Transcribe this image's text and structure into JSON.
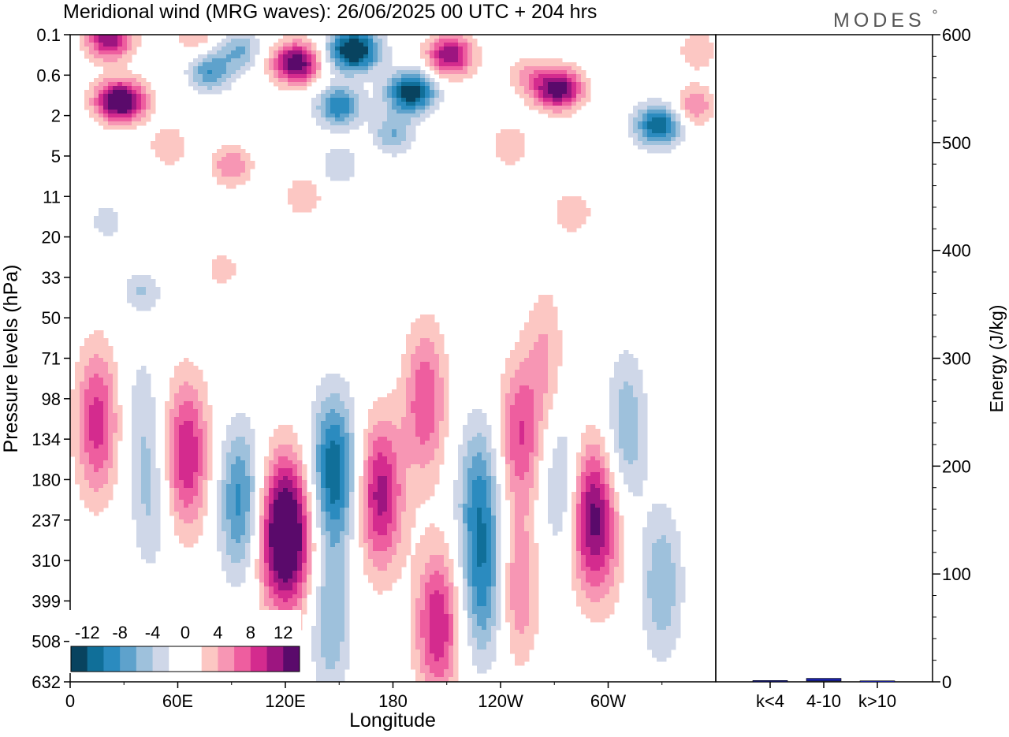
{
  "title": "Meridional wind (MRG waves):  26/06/2025  00 UTC  + 204 hrs",
  "logo_text": "MODES",
  "chart_data": [
    {
      "type": "heatmap",
      "title": "Meridional wind (MRG waves):  26/06/2025  00 UTC  + 204 hrs",
      "xlabel": "Longitude",
      "ylabel": "Pressure levels (hPa)",
      "x_ticks": [
        "0",
        "60E",
        "120E",
        "180",
        "120W",
        "60W"
      ],
      "x_tick_values": [
        0,
        60,
        120,
        180,
        240,
        300
      ],
      "xlim": [
        0,
        360
      ],
      "y_ticks": [
        "0.1",
        "0.6",
        "2",
        "5",
        "11",
        "20",
        "33",
        "50",
        "71",
        "98",
        "134",
        "180",
        "237",
        "310",
        "399",
        "508",
        "632"
      ],
      "y_scale": "log",
      "colorbar": {
        "labels": [
          "-12",
          "-8",
          "-4",
          "0",
          "4",
          "8",
          "12"
        ],
        "values": [
          -14,
          -12,
          -10,
          -8,
          -6,
          -4,
          -2,
          0,
          2,
          4,
          6,
          8,
          10,
          12,
          14
        ],
        "colors": [
          "#08435f",
          "#106f99",
          "#2b8bbf",
          "#5ea2cc",
          "#9ec1dc",
          "#cfd7e8",
          "#ffffff",
          "#ffffff",
          "#fcc7c3",
          "#f796b4",
          "#ee5e9f",
          "#d42b8e",
          "#9d1580",
          "#5a0a6b"
        ],
        "placement": "bottom-left"
      },
      "blobs": [
        {
          "lon": 28,
          "lev": 1.3,
          "val": 16
        },
        {
          "lon": 22,
          "lev": 0.12,
          "val": 12
        },
        {
          "lon": 70,
          "lev": 0.11,
          "val": 4
        },
        {
          "lon": 78,
          "lev": 0.5,
          "val": -8
        },
        {
          "lon": 95,
          "lev": 0.2,
          "val": -6
        },
        {
          "lon": 126,
          "lev": 0.35,
          "val": 14
        },
        {
          "lon": 158,
          "lev": 0.2,
          "val": -16
        },
        {
          "lon": 150,
          "lev": 1.5,
          "val": -10
        },
        {
          "lon": 190,
          "lev": 1.0,
          "val": -14
        },
        {
          "lon": 180,
          "lev": 3.0,
          "val": -6
        },
        {
          "lon": 212,
          "lev": 0.25,
          "val": 12
        },
        {
          "lon": 255,
          "lev": 0.6,
          "val": 4
        },
        {
          "lon": 272,
          "lev": 0.9,
          "val": 14
        },
        {
          "lon": 245,
          "lev": 4,
          "val": 4
        },
        {
          "lon": 328,
          "lev": 2.5,
          "val": -12
        },
        {
          "lon": 348,
          "lev": 1.5,
          "val": 6
        },
        {
          "lon": 350,
          "lev": 0.2,
          "val": 4
        },
        {
          "lon": 90,
          "lev": 6,
          "val": 6
        },
        {
          "lon": 55,
          "lev": 4,
          "val": 4
        },
        {
          "lon": 130,
          "lev": 11,
          "val": 4
        },
        {
          "lon": 150,
          "lev": 6,
          "val": -4
        },
        {
          "lon": 280,
          "lev": 14,
          "val": 4
        },
        {
          "lon": 20,
          "lev": 16,
          "val": -3
        },
        {
          "lon": 85,
          "lev": 30,
          "val": 3
        },
        {
          "lon": 40,
          "lev": 38,
          "val": -4
        },
        {
          "lon": 15,
          "lev": 118,
          "val": 9
        },
        {
          "lon": 40,
          "lev": 110,
          "val": -3
        },
        {
          "lon": 45,
          "lev": 210,
          "val": -4
        },
        {
          "lon": 65,
          "lev": 150,
          "val": 10
        },
        {
          "lon": 95,
          "lev": 210,
          "val": -9
        },
        {
          "lon": 120,
          "lev": 260,
          "val": 18
        },
        {
          "lon": 147,
          "lev": 170,
          "val": -12
        },
        {
          "lon": 145,
          "lev": 450,
          "val": -6
        },
        {
          "lon": 173,
          "lev": 200,
          "val": 11
        },
        {
          "lon": 198,
          "lev": 100,
          "val": 8
        },
        {
          "lon": 205,
          "lev": 460,
          "val": 10
        },
        {
          "lon": 228,
          "lev": 200,
          "val": -8
        },
        {
          "lon": 230,
          "lev": 370,
          "val": -8
        },
        {
          "lon": 251,
          "lev": 130,
          "val": 8
        },
        {
          "lon": 250,
          "lev": 370,
          "val": 6
        },
        {
          "lon": 275,
          "lev": 190,
          "val": -6
        },
        {
          "lon": 290,
          "lev": 230,
          "val": 12
        },
        {
          "lon": 310,
          "lev": 125,
          "val": -6
        },
        {
          "lon": 330,
          "lev": 360,
          "val": -6
        },
        {
          "lon": 265,
          "lev": 70,
          "val": 4
        },
        {
          "lon": 300,
          "lev": 270,
          "val": 3
        }
      ]
    },
    {
      "type": "bar",
      "categories": [
        "k<4",
        "4-10",
        "k>10"
      ],
      "values": [
        0.5,
        2.5,
        0.2
      ],
      "ylabel": "Energy (J/kg)",
      "ylim": [
        0,
        600
      ],
      "y_ticks": [
        "0",
        "100",
        "200",
        "300",
        "400",
        "500",
        "600"
      ],
      "bar_color": "#1a22a8"
    }
  ]
}
